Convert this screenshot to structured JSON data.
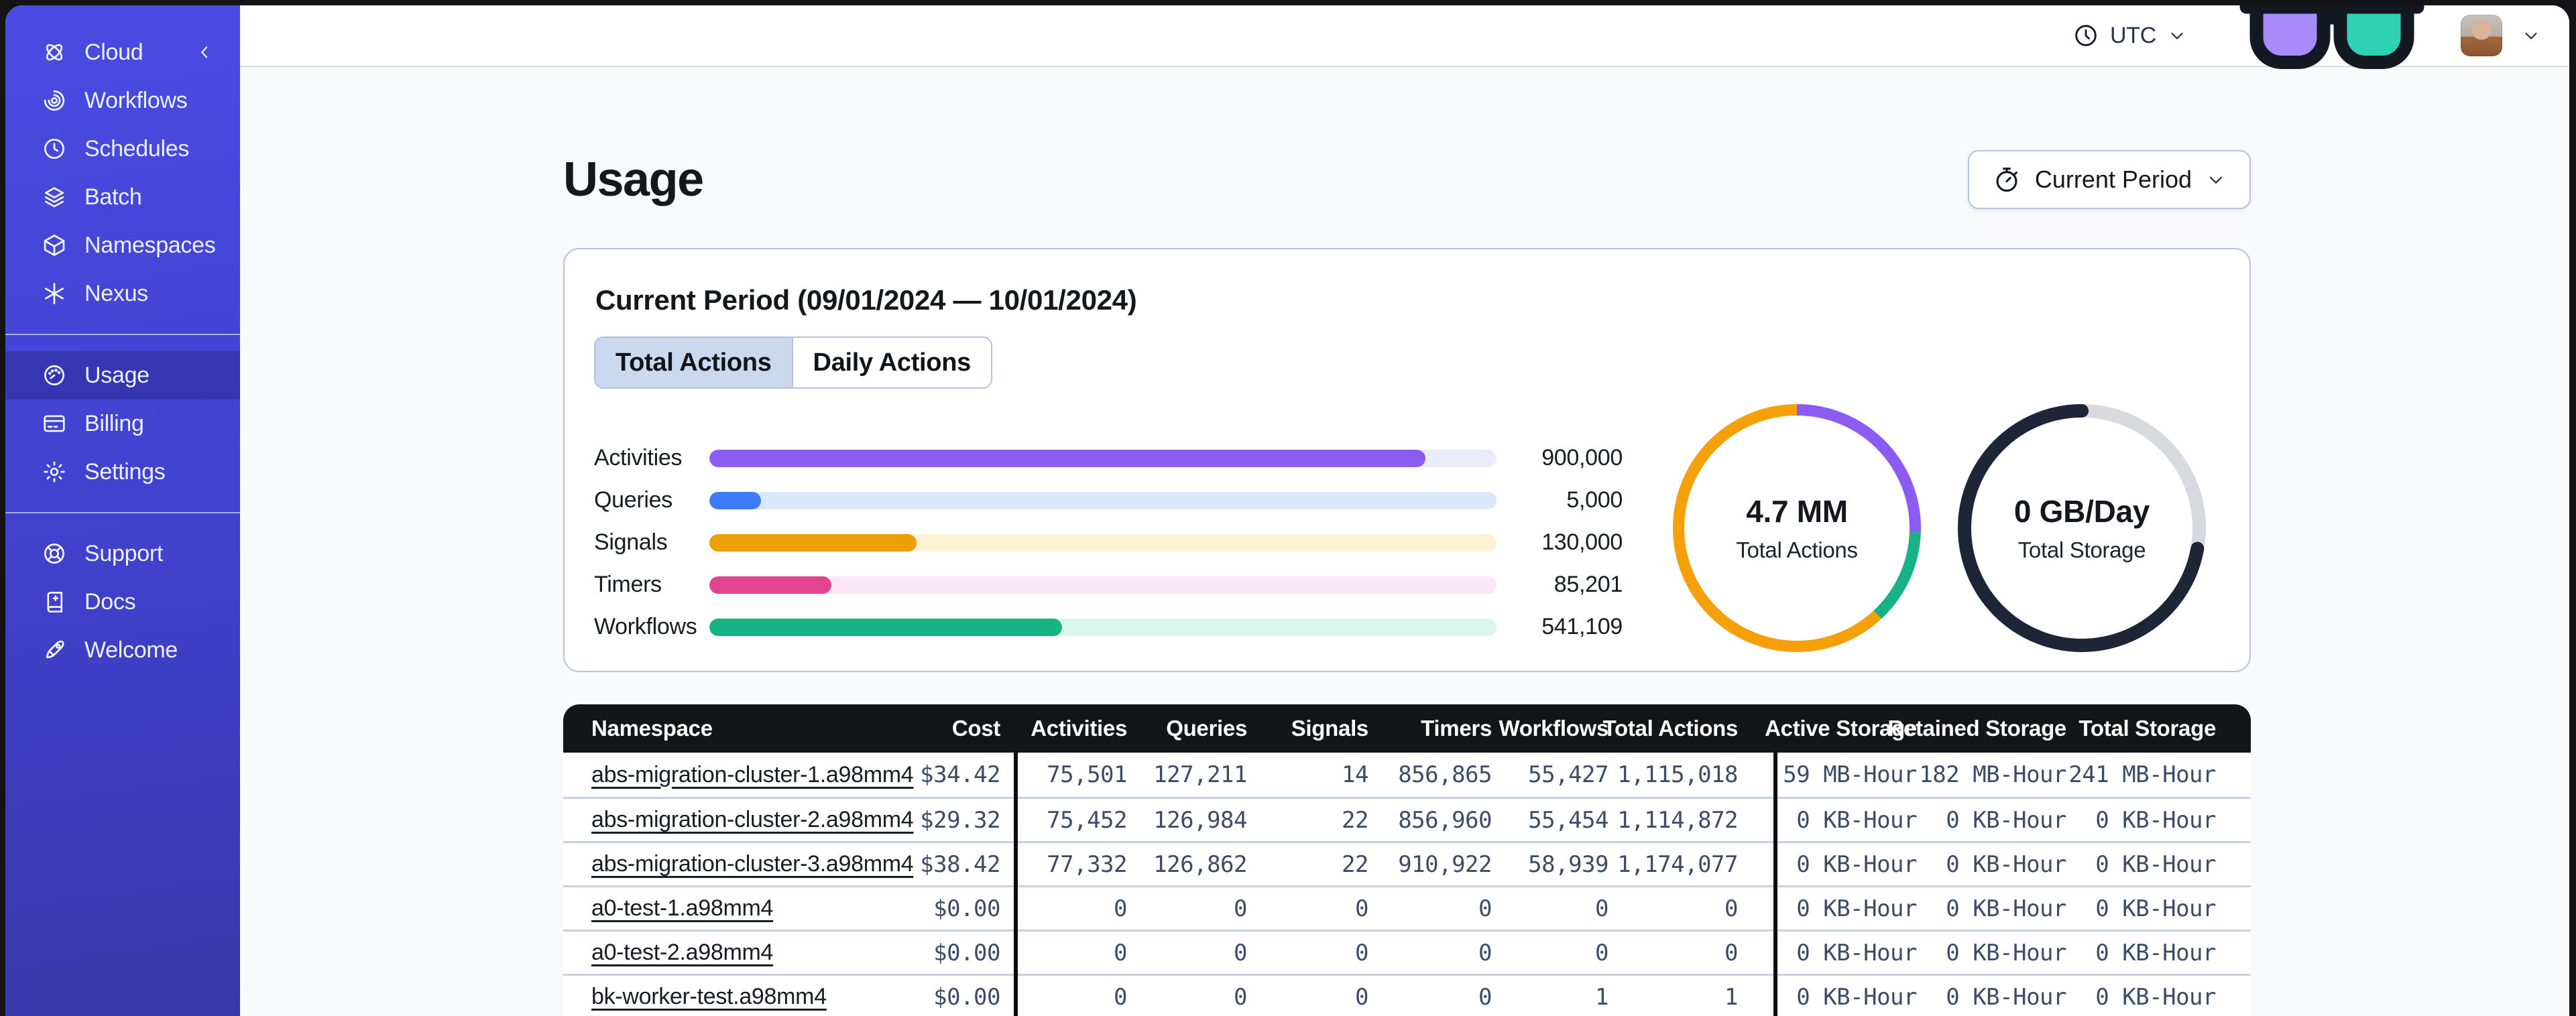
{
  "sidebar": {
    "brand": {
      "label": "Cloud",
      "icon": "cloud-logo"
    },
    "nav_primary": [
      {
        "id": "workflows",
        "label": "Workflows",
        "icon": "workflows"
      },
      {
        "id": "schedules",
        "label": "Schedules",
        "icon": "schedules"
      },
      {
        "id": "batch",
        "label": "Batch",
        "icon": "batch"
      },
      {
        "id": "namespaces",
        "label": "Namespaces",
        "icon": "namespaces"
      },
      {
        "id": "nexus",
        "label": "Nexus",
        "icon": "nexus"
      }
    ],
    "nav_account": [
      {
        "id": "usage",
        "label": "Usage",
        "icon": "usage",
        "active": true
      },
      {
        "id": "billing",
        "label": "Billing",
        "icon": "billing"
      },
      {
        "id": "settings",
        "label": "Settings",
        "icon": "settings"
      }
    ],
    "nav_footer": [
      {
        "id": "support",
        "label": "Support",
        "icon": "support"
      },
      {
        "id": "docs",
        "label": "Docs",
        "icon": "docs"
      },
      {
        "id": "welcome",
        "label": "Welcome",
        "icon": "welcome"
      }
    ]
  },
  "topbar": {
    "timezone": "UTC"
  },
  "page": {
    "title": "Usage"
  },
  "period_button": {
    "label": "Current Period"
  },
  "usage_card": {
    "title": "Current Period (09/01/2024 — 10/01/2024)",
    "tabs": [
      {
        "label": "Total Actions",
        "active": true
      },
      {
        "label": "Daily Actions",
        "active": false
      }
    ],
    "bars": [
      {
        "label": "Activities",
        "value": "900,000",
        "pct": 91,
        "fill": "#8c5bf2",
        "track": "#ecebfc"
      },
      {
        "label": "Queries",
        "value": "5,000",
        "pct": 6.6,
        "fill": "#3f7bf6",
        "track": "#dbe7fb"
      },
      {
        "label": "Signals",
        "value": "130,000",
        "pct": 26.3,
        "fill": "#f09e08",
        "track": "#fdf3d2"
      },
      {
        "label": "Timers",
        "value": "85,201",
        "pct": 15.5,
        "fill": "#e2458f",
        "track": "#fbe7f4"
      },
      {
        "label": "Workflows",
        "value": "541,109",
        "pct": 44.8,
        "fill": "#16b385",
        "track": "#d9f6eb"
      }
    ],
    "donuts": [
      {
        "value": "4.7 MM",
        "caption": "Total Actions",
        "thickness": 17,
        "cap": "butt",
        "segments": [
          {
            "color": "#8c5bf2",
            "from": 0,
            "to": 92
          },
          {
            "color": "#17b285",
            "from": 92,
            "to": 137
          },
          {
            "color": "#f5a009",
            "from": 137,
            "to": 360
          }
        ]
      },
      {
        "value": "0 GB/Day",
        "caption": "Total Storage",
        "thickness": 20,
        "cap": "round",
        "segments": [
          {
            "color": "#d7d9de",
            "from": 0,
            "to": 100
          },
          {
            "color": "#1c2637",
            "from": 100,
            "to": 360
          }
        ]
      }
    ]
  },
  "table": {
    "columns": [
      {
        "key": "namespace",
        "label": "Namespace",
        "align": "left"
      },
      {
        "key": "cost",
        "label": "Cost",
        "align": "right"
      },
      {
        "key": "activities",
        "label": "Activities",
        "align": "right"
      },
      {
        "key": "queries",
        "label": "Queries",
        "align": "right"
      },
      {
        "key": "signals",
        "label": "Signals",
        "align": "right"
      },
      {
        "key": "timers",
        "label": "Timers",
        "align": "right"
      },
      {
        "key": "workflows",
        "label": "Workflows",
        "align": "right"
      },
      {
        "key": "total_actions",
        "label": "Total Actions",
        "align": "right"
      },
      {
        "key": "active_storage",
        "label": "Active Storage",
        "align": "right"
      },
      {
        "key": "retained_storage",
        "label": "Retained Storage",
        "align": "right"
      },
      {
        "key": "total_storage",
        "label": "Total Storage",
        "align": "right"
      }
    ],
    "rows": [
      {
        "namespace": "abs-migration-cluster-1.a98mm4",
        "cost": "$34.42",
        "activities": "75,501",
        "queries": "127,211",
        "signals": "14",
        "timers": "856,865",
        "workflows": "55,427",
        "total_actions": "1,115,018",
        "active_storage": "59 MB-Hour",
        "retained_storage": "182 MB-Hour",
        "total_storage": "241 MB-Hour"
      },
      {
        "namespace": "abs-migration-cluster-2.a98mm4",
        "cost": "$29.32",
        "activities": "75,452",
        "queries": "126,984",
        "signals": "22",
        "timers": "856,960",
        "workflows": "55,454",
        "total_actions": "1,114,872",
        "active_storage": "0 KB-Hour",
        "retained_storage": "0 KB-Hour",
        "total_storage": "0 KB-Hour"
      },
      {
        "namespace": "abs-migration-cluster-3.a98mm4",
        "cost": "$38.42",
        "activities": "77,332",
        "queries": "126,862",
        "signals": "22",
        "timers": "910,922",
        "workflows": "58,939",
        "total_actions": "1,174,077",
        "active_storage": "0 KB-Hour",
        "retained_storage": "0 KB-Hour",
        "total_storage": "0 KB-Hour"
      },
      {
        "namespace": "a0-test-1.a98mm4",
        "cost": "$0.00",
        "activities": "0",
        "queries": "0",
        "signals": "0",
        "timers": "0",
        "workflows": "0",
        "total_actions": "0",
        "active_storage": "0 KB-Hour",
        "retained_storage": "0 KB-Hour",
        "total_storage": "0 KB-Hour"
      },
      {
        "namespace": "a0-test-2.a98mm4",
        "cost": "$0.00",
        "activities": "0",
        "queries": "0",
        "signals": "0",
        "timers": "0",
        "workflows": "0",
        "total_actions": "0",
        "active_storage": "0 KB-Hour",
        "retained_storage": "0 KB-Hour",
        "total_storage": "0 KB-Hour"
      },
      {
        "namespace": "bk-worker-test.a98mm4",
        "cost": "$0.00",
        "activities": "0",
        "queries": "0",
        "signals": "0",
        "timers": "0",
        "workflows": "1",
        "total_actions": "1",
        "active_storage": "0 KB-Hour",
        "retained_storage": "0 KB-Hour",
        "total_storage": "0 KB-Hour"
      }
    ]
  },
  "colors": {
    "sidebar_top": "#4a4be2",
    "sidebar_bottom": "#3838ab",
    "accent_purple": "#8c5bf2",
    "accent_blue": "#3f7bf6",
    "accent_orange": "#f09e08",
    "accent_pink": "#e2458f",
    "accent_green": "#16b385",
    "table_header_bg": "#141519",
    "card_border": "#b6c3dc"
  }
}
